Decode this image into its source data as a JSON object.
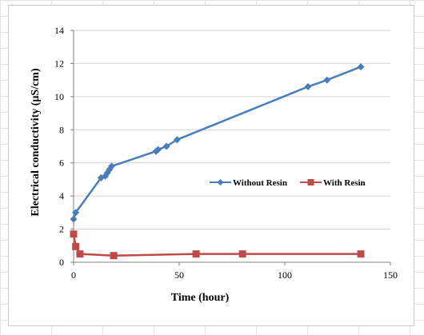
{
  "chart_data": {
    "type": "line",
    "title": "",
    "xlabel": "Time (hour)",
    "ylabel": "Electrical  conductivity  (μS/cm)",
    "xlim": [
      0,
      150
    ],
    "ylim": [
      0,
      14
    ],
    "xticks": [
      0,
      50,
      100,
      150
    ],
    "yticks": [
      0,
      2,
      4,
      6,
      8,
      10,
      12,
      14
    ],
    "grid": "horizontal",
    "legend_position": "center-right",
    "series": [
      {
        "name": "Without Resin",
        "color": "#4a7ebb",
        "marker": "diamond",
        "x": [
          0,
          1,
          13,
          15,
          16,
          17,
          18,
          39,
          40,
          44,
          49,
          111,
          120,
          136
        ],
        "y": [
          2.6,
          3.0,
          5.1,
          5.2,
          5.4,
          5.6,
          5.8,
          6.7,
          6.8,
          7.0,
          7.4,
          10.6,
          11.0,
          11.8
        ]
      },
      {
        "name": "With Resin",
        "color": "#be4b48",
        "marker": "square",
        "x": [
          0,
          1,
          3,
          19,
          58,
          80,
          136
        ],
        "y": [
          1.7,
          0.95,
          0.5,
          0.4,
          0.5,
          0.5,
          0.5
        ]
      }
    ]
  }
}
